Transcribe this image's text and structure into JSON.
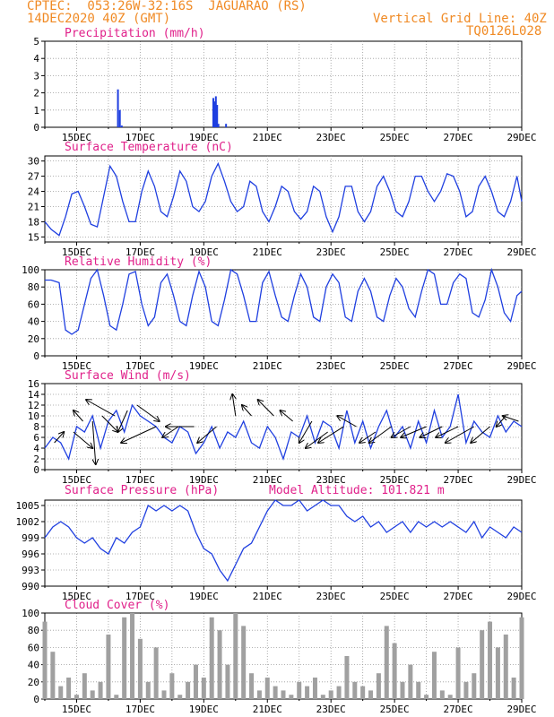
{
  "header": {
    "line1": "CPTEC:  053:26W-32:16S  JAGUARAO (RS)",
    "line2": "14DEC2020 40Z (GMT)",
    "right1": "Vertical Grid Line: 40Z",
    "right2": "TQ0126L028"
  },
  "colors": {
    "header": "#f08a24",
    "title": "#e0208a",
    "line": "#1f3fe0",
    "cloud": "#a0a0a0"
  },
  "chart_data": [
    {
      "id": "precip",
      "type": "bar",
      "title": "Precipitation (mm/h)",
      "ylim": [
        0,
        5
      ],
      "yticks": [
        0,
        1,
        2,
        3,
        4,
        5
      ],
      "xticks": [
        "15DEC",
        "17DEC",
        "19DEC",
        "21DEC",
        "23DEC",
        "25DEC",
        "27DEC",
        "29DEC"
      ],
      "x": [
        16.3,
        16.36,
        16.42,
        19.3,
        19.34,
        19.38,
        19.42,
        19.46,
        19.7
      ],
      "values": [
        2.2,
        1.0,
        0.1,
        1.7,
        1.5,
        1.8,
        1.3,
        0.2,
        0.2
      ]
    },
    {
      "id": "temp",
      "type": "line",
      "title": "Surface Temperature (nC)",
      "ylim": [
        14,
        31
      ],
      "yticks": [
        15,
        18,
        21,
        24,
        27,
        30
      ],
      "xticks": [
        "15DEC",
        "17DEC",
        "19DEC",
        "21DEC",
        "23DEC",
        "25DEC",
        "27DEC",
        "29DEC"
      ],
      "x": [
        14.0,
        14.2,
        14.45,
        14.65,
        14.85,
        15.05,
        15.25,
        15.45,
        15.65,
        15.85,
        16.05,
        16.25,
        16.45,
        16.65,
        16.85,
        17.05,
        17.25,
        17.45,
        17.65,
        17.85,
        18.05,
        18.25,
        18.45,
        18.65,
        18.85,
        19.05,
        19.25,
        19.45,
        19.65,
        19.85,
        20.05,
        20.25,
        20.45,
        20.65,
        20.85,
        21.05,
        21.25,
        21.45,
        21.65,
        21.85,
        22.05,
        22.25,
        22.45,
        22.65,
        22.85,
        23.05,
        23.25,
        23.45,
        23.65,
        23.85,
        24.05,
        24.25,
        24.45,
        24.65,
        24.85,
        25.05,
        25.25,
        25.45,
        25.65,
        25.85,
        26.05,
        26.25,
        26.45,
        26.65,
        26.85,
        27.05,
        27.25,
        27.45,
        27.65,
        27.85,
        28.05,
        28.25,
        28.45,
        28.65,
        28.85,
        29.0
      ],
      "values": [
        18,
        16.5,
        15.3,
        19,
        23.5,
        24,
        21,
        17.5,
        17,
        23,
        29,
        27,
        22,
        18,
        18,
        24,
        28,
        25,
        20,
        19,
        23,
        28,
        26,
        21,
        20,
        22,
        27,
        29.5,
        26,
        22,
        20,
        21,
        26,
        25,
        20,
        18,
        21,
        25,
        24,
        20,
        18.5,
        20,
        25,
        24,
        19,
        16,
        19,
        25,
        25,
        20,
        18,
        20,
        25,
        27,
        24,
        20,
        19,
        22,
        27,
        27,
        24,
        22,
        24,
        27.5,
        27,
        24,
        19,
        20,
        25,
        27,
        24,
        20,
        19,
        22,
        27,
        22
      ]
    },
    {
      "id": "rh",
      "type": "line",
      "title": "Relative Humidity (%)",
      "ylim": [
        0,
        100
      ],
      "yticks": [
        0,
        20,
        40,
        60,
        80,
        100
      ],
      "xticks": [
        "15DEC",
        "17DEC",
        "19DEC",
        "21DEC",
        "23DEC",
        "25DEC",
        "27DEC",
        "29DEC"
      ],
      "x": [
        14.0,
        14.2,
        14.45,
        14.65,
        14.85,
        15.05,
        15.25,
        15.45,
        15.65,
        15.85,
        16.05,
        16.25,
        16.45,
        16.65,
        16.85,
        17.05,
        17.25,
        17.45,
        17.65,
        17.85,
        18.05,
        18.25,
        18.45,
        18.65,
        18.85,
        19.05,
        19.25,
        19.45,
        19.65,
        19.85,
        20.05,
        20.25,
        20.45,
        20.65,
        20.85,
        21.05,
        21.25,
        21.45,
        21.65,
        21.85,
        22.05,
        22.25,
        22.45,
        22.65,
        22.85,
        23.05,
        23.25,
        23.45,
        23.65,
        23.85,
        24.05,
        24.25,
        24.45,
        24.65,
        24.85,
        25.05,
        25.25,
        25.45,
        25.65,
        25.85,
        26.05,
        26.25,
        26.45,
        26.65,
        26.85,
        27.05,
        27.25,
        27.45,
        27.65,
        27.85,
        28.05,
        28.25,
        28.45,
        28.65,
        28.85,
        29.0
      ],
      "values": [
        88,
        88,
        85,
        30,
        25,
        30,
        60,
        90,
        100,
        70,
        35,
        30,
        60,
        95,
        98,
        60,
        35,
        45,
        85,
        95,
        70,
        40,
        35,
        70,
        98,
        80,
        40,
        35,
        65,
        100,
        95,
        70,
        40,
        40,
        85,
        98,
        70,
        45,
        40,
        70,
        95,
        80,
        45,
        40,
        80,
        95,
        85,
        45,
        40,
        75,
        90,
        75,
        45,
        40,
        70,
        90,
        80,
        55,
        45,
        75,
        100,
        95,
        60,
        60,
        85,
        95,
        90,
        50,
        45,
        65,
        100,
        80,
        50,
        40,
        70,
        75
      ]
    },
    {
      "id": "wind",
      "type": "line",
      "title": "Surface Wind (m/s)",
      "ylim": [
        0,
        16
      ],
      "yticks": [
        0,
        2,
        4,
        6,
        8,
        10,
        12,
        14,
        16
      ],
      "xticks": [
        "15DEC",
        "17DEC",
        "19DEC",
        "21DEC",
        "23DEC",
        "25DEC",
        "27DEC",
        "29DEC"
      ],
      "x": [
        14.0,
        14.25,
        14.5,
        14.75,
        15.0,
        15.25,
        15.5,
        15.75,
        16.0,
        16.25,
        16.5,
        16.75,
        17.0,
        17.25,
        17.5,
        17.75,
        18.0,
        18.25,
        18.5,
        18.75,
        19.0,
        19.25,
        19.5,
        19.75,
        20.0,
        20.25,
        20.5,
        20.75,
        21.0,
        21.25,
        21.5,
        21.75,
        22.0,
        22.25,
        22.5,
        22.75,
        23.0,
        23.25,
        23.5,
        23.75,
        24.0,
        24.25,
        24.5,
        24.75,
        25.0,
        25.25,
        25.5,
        25.75,
        26.0,
        26.25,
        26.5,
        26.75,
        27.0,
        27.25,
        27.5,
        27.75,
        28.0,
        28.25,
        28.5,
        28.75,
        29.0
      ],
      "values": [
        4,
        6,
        5,
        2,
        8,
        7,
        10,
        4,
        9,
        11,
        7,
        12,
        10,
        9,
        8,
        6,
        5,
        8,
        7,
        3,
        5,
        8,
        4,
        7,
        6,
        9,
        5,
        4,
        8,
        6,
        2,
        7,
        6,
        10,
        5,
        9,
        8,
        4,
        11,
        5,
        9,
        4,
        8,
        11,
        6,
        8,
        4,
        9,
        5,
        11,
        6,
        8,
        14,
        5,
        9,
        7,
        6,
        10,
        7,
        9,
        8
      ],
      "barbs": [
        [
          14.3,
          5,
          14.6,
          7
        ],
        [
          14.9,
          7,
          15.5,
          4
        ],
        [
          15.2,
          9,
          14.9,
          11
        ],
        [
          15.5,
          9,
          15.6,
          1
        ],
        [
          15.8,
          10,
          16.3,
          7
        ],
        [
          16.2,
          10,
          15.3,
          13
        ],
        [
          16.6,
          11,
          16.3,
          7
        ],
        [
          16.9,
          12,
          17.6,
          9
        ],
        [
          17.5,
          8,
          16.4,
          5
        ],
        [
          18.2,
          8,
          17.7,
          6
        ],
        [
          18.7,
          8,
          17.8,
          8
        ],
        [
          19.4,
          8,
          18.8,
          5
        ],
        [
          20.0,
          10,
          19.9,
          14
        ],
        [
          20.5,
          10,
          20.2,
          12
        ],
        [
          21.2,
          10,
          20.7,
          13
        ],
        [
          21.8,
          9,
          21.4,
          11
        ],
        [
          22.4,
          9,
          22.0,
          5
        ],
        [
          22.9,
          7,
          22.2,
          4
        ],
        [
          23.4,
          8,
          22.6,
          5
        ],
        [
          23.8,
          8,
          23.2,
          10
        ],
        [
          24.4,
          7,
          23.9,
          5
        ],
        [
          24.9,
          8,
          24.2,
          5
        ],
        [
          25.5,
          8,
          24.9,
          6
        ],
        [
          26.0,
          8,
          25.2,
          6
        ],
        [
          26.5,
          8,
          25.8,
          6
        ],
        [
          27.0,
          8,
          26.3,
          6
        ],
        [
          27.5,
          8,
          26.6,
          5
        ],
        [
          28.0,
          8,
          27.4,
          5
        ],
        [
          28.5,
          10,
          28.2,
          8
        ],
        [
          28.9,
          9,
          28.4,
          10
        ]
      ]
    },
    {
      "id": "pres",
      "type": "line",
      "title": "Surface Pressure (hPa)",
      "subtitle": "Model Altitude: 101.821 m",
      "ylim": [
        990,
        1006
      ],
      "yticks": [
        990,
        993,
        996,
        999,
        1002,
        1005
      ],
      "xticks": [
        "15DEC",
        "17DEC",
        "19DEC",
        "21DEC",
        "23DEC",
        "25DEC",
        "27DEC",
        "29DEC"
      ],
      "x": [
        14.0,
        14.25,
        14.5,
        14.75,
        15.0,
        15.25,
        15.5,
        15.75,
        16.0,
        16.25,
        16.5,
        16.75,
        17.0,
        17.25,
        17.5,
        17.75,
        18.0,
        18.25,
        18.5,
        18.75,
        19.0,
        19.25,
        19.5,
        19.75,
        20.0,
        20.25,
        20.5,
        20.75,
        21.0,
        21.25,
        21.5,
        21.75,
        22.0,
        22.25,
        22.5,
        22.75,
        23.0,
        23.25,
        23.5,
        23.75,
        24.0,
        24.25,
        24.5,
        24.75,
        25.0,
        25.25,
        25.5,
        25.75,
        26.0,
        26.25,
        26.5,
        26.75,
        27.0,
        27.25,
        27.5,
        27.75,
        28.0,
        28.25,
        28.5,
        28.75,
        29.0
      ],
      "values": [
        999,
        1001,
        1002,
        1001,
        999,
        998,
        999,
        997,
        996,
        999,
        998,
        1000,
        1001,
        1005,
        1004,
        1005,
        1004,
        1005,
        1004,
        1000,
        997,
        996,
        993,
        991,
        994,
        997,
        998,
        1001,
        1004,
        1006,
        1005,
        1005,
        1006,
        1004,
        1005,
        1006,
        1005,
        1005,
        1003,
        1002,
        1003,
        1001,
        1002,
        1000,
        1001,
        1002,
        1000,
        1002,
        1001,
        1002,
        1001,
        1002,
        1001,
        1000,
        1002,
        999,
        1001,
        1000,
        999,
        1001,
        1000
      ]
    },
    {
      "id": "cloud",
      "type": "bar",
      "title": "Cloud Cover (%)",
      "ylim": [
        0,
        100
      ],
      "yticks": [
        0,
        20,
        40,
        60,
        80,
        100
      ],
      "xticks": [
        "15DEC",
        "17DEC",
        "19DEC",
        "21DEC",
        "23DEC",
        "25DEC",
        "27DEC",
        "29DEC"
      ],
      "x": [
        14.0,
        14.25,
        14.5,
        14.75,
        15.0,
        15.25,
        15.5,
        15.75,
        16.0,
        16.25,
        16.5,
        16.75,
        17.0,
        17.25,
        17.5,
        17.75,
        18.0,
        18.25,
        18.5,
        18.75,
        19.0,
        19.25,
        19.5,
        19.75,
        20.0,
        20.25,
        20.5,
        20.75,
        21.0,
        21.25,
        21.5,
        21.75,
        22.0,
        22.25,
        22.5,
        22.75,
        23.0,
        23.25,
        23.5,
        23.75,
        24.0,
        24.25,
        24.5,
        24.75,
        25.0,
        25.25,
        25.5,
        25.75,
        26.0,
        26.25,
        26.5,
        26.75,
        27.0,
        27.25,
        27.5,
        27.75,
        28.0,
        28.25,
        28.5,
        28.75,
        29.0
      ],
      "values": [
        90,
        55,
        15,
        25,
        5,
        30,
        10,
        20,
        75,
        5,
        95,
        100,
        70,
        20,
        60,
        10,
        30,
        5,
        20,
        40,
        25,
        95,
        80,
        40,
        100,
        85,
        30,
        10,
        25,
        15,
        10,
        5,
        20,
        15,
        25,
        5,
        10,
        15,
        50,
        20,
        15,
        10,
        30,
        85,
        65,
        20,
        40,
        20,
        5,
        55,
        10,
        5,
        60,
        20,
        30,
        80,
        90,
        60,
        75,
        25,
        95
      ]
    }
  ]
}
